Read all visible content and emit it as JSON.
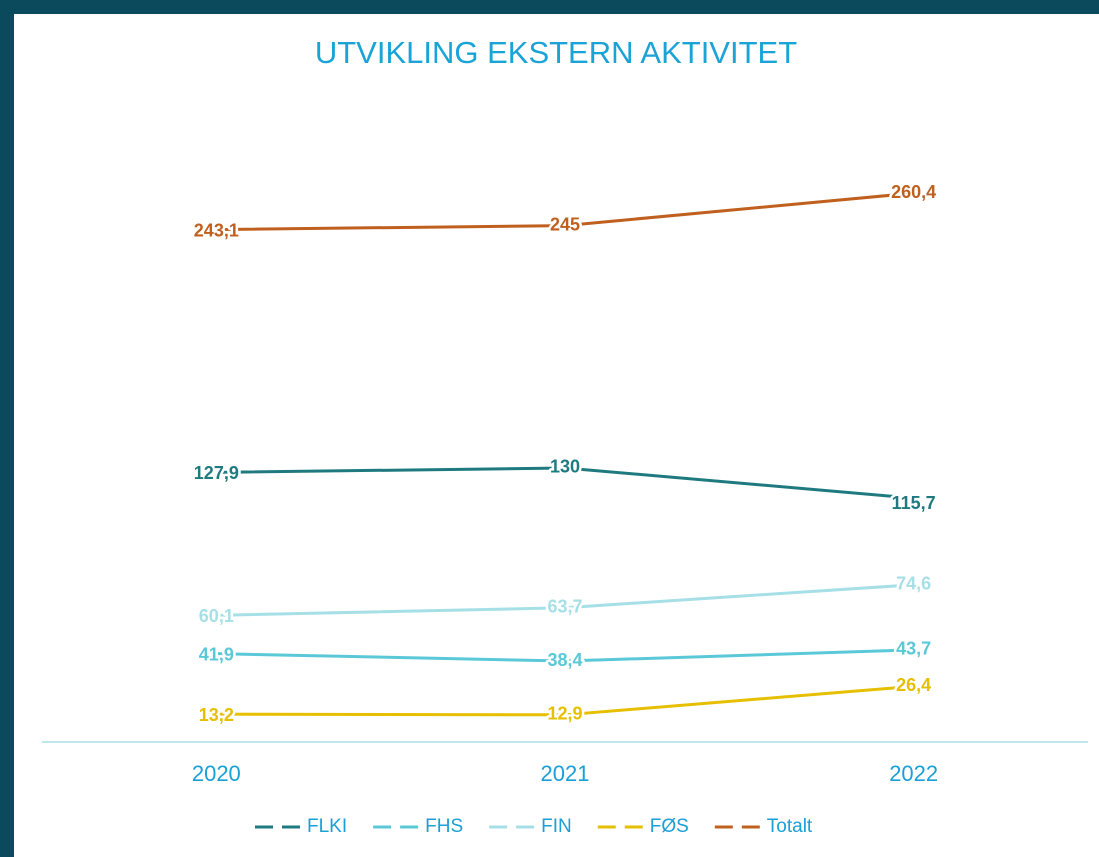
{
  "chart_data": {
    "type": "line",
    "title": "UTVIKLING EKSTERN AKTIVITET",
    "categories": [
      "2020",
      "2021",
      "2022"
    ],
    "ylim": [
      0,
      280
    ],
    "legend": "bottom",
    "series": [
      {
        "name": "FLKI",
        "color": "#1f7a80",
        "values": [
          127.9,
          130,
          115.7
        ],
        "value_labels": [
          "127,9",
          "130",
          "115,7"
        ]
      },
      {
        "name": "FHS",
        "color": "#5bc8d8",
        "values": [
          41.9,
          38.4,
          43.7
        ],
        "value_labels": [
          "41,9",
          "38,4",
          "43,7"
        ]
      },
      {
        "name": "FIN",
        "color": "#a6e0e6",
        "values": [
          60.1,
          63.7,
          74.6
        ],
        "value_labels": [
          "60,1",
          "63,7",
          "74,6"
        ]
      },
      {
        "name": "FØS",
        "color": "#e6c000",
        "values": [
          13.2,
          12.9,
          26.4
        ],
        "value_labels": [
          "13,2",
          "12,9",
          "26,4"
        ]
      },
      {
        "name": "Totalt",
        "color": "#c0601f",
        "values": [
          243.1,
          245,
          260.4
        ],
        "value_labels": [
          "243,1",
          "245",
          "260,4"
        ]
      }
    ]
  }
}
